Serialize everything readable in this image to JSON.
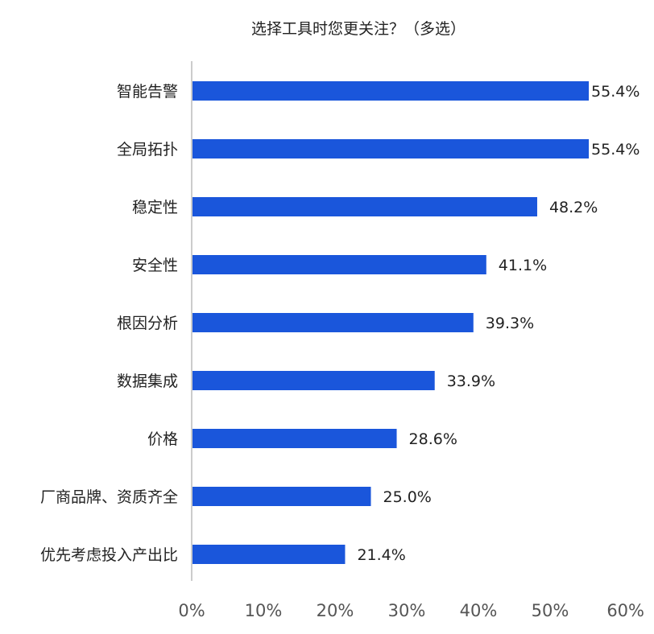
{
  "chart_data": {
    "type": "bar",
    "orientation": "horizontal",
    "title": "选择工具时您更关注？（多选）",
    "categories": [
      "智能告警",
      "全局拓扑",
      "稳定性",
      "安全性",
      "根因分析",
      "数据集成",
      "价格",
      "厂商品牌、资质齐全",
      "优先考虑投入产出比"
    ],
    "values": [
      55.4,
      55.4,
      48.2,
      41.1,
      39.3,
      33.9,
      28.6,
      25.0,
      21.4
    ],
    "value_labels": [
      "55.4%",
      "55.4%",
      "48.2%",
      "41.1%",
      "39.3%",
      "33.9%",
      "28.6%",
      "25.0%",
      "21.4%"
    ],
    "xlim": [
      0,
      60
    ],
    "x_ticks": [
      0,
      10,
      20,
      30,
      40,
      50,
      60
    ],
    "x_tick_labels": [
      "0%",
      "10%",
      "20%",
      "30%",
      "40%",
      "50%",
      "60%"
    ],
    "xlabel": "",
    "ylabel": "",
    "grid": false,
    "legend": "none",
    "bar_color": "#1a56db",
    "axis_color": "#cccccc"
  }
}
